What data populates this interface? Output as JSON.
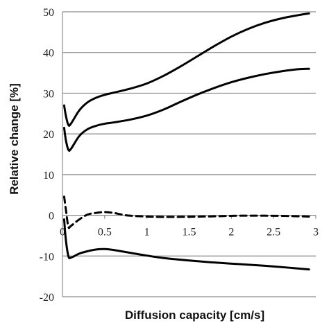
{
  "chart_data": {
    "type": "line",
    "xlabel": "Diffusion capacity [cm/s]",
    "ylabel": "Relative change [%]",
    "xlim": [
      0,
      3
    ],
    "ylim": [
      -20,
      50
    ],
    "x_ticks": [
      "0",
      "0.5",
      "1",
      "1.5",
      "2",
      "2.5",
      "3"
    ],
    "y_ticks": [
      "-20",
      "-10",
      "0",
      "10",
      "20",
      "30",
      "40",
      "50"
    ],
    "grid": "horizontal",
    "legend": "none",
    "line_color": "#000000",
    "series": [
      {
        "style": "solid",
        "points": [
          [
            0.02,
            27
          ],
          [
            0.04,
            24.5
          ],
          [
            0.07,
            22.2
          ],
          [
            0.1,
            22.5
          ],
          [
            0.2,
            25.8
          ],
          [
            0.3,
            27.8
          ],
          [
            0.4,
            28.9
          ],
          [
            0.5,
            29.6
          ],
          [
            0.6,
            30.1
          ],
          [
            0.8,
            31.1
          ],
          [
            1.0,
            32.4
          ],
          [
            1.2,
            34.3
          ],
          [
            1.4,
            36.6
          ],
          [
            1.6,
            39.1
          ],
          [
            1.8,
            41.6
          ],
          [
            2.0,
            43.9
          ],
          [
            2.2,
            45.8
          ],
          [
            2.4,
            47.3
          ],
          [
            2.6,
            48.4
          ],
          [
            2.8,
            49.2
          ],
          [
            2.92,
            49.6
          ]
        ]
      },
      {
        "style": "solid",
        "points": [
          [
            0.02,
            21.5
          ],
          [
            0.04,
            18.5
          ],
          [
            0.07,
            16.1
          ],
          [
            0.1,
            16.3
          ],
          [
            0.2,
            19.5
          ],
          [
            0.3,
            21.2
          ],
          [
            0.4,
            22.0
          ],
          [
            0.5,
            22.5
          ],
          [
            0.6,
            22.8
          ],
          [
            0.8,
            23.5
          ],
          [
            1.0,
            24.5
          ],
          [
            1.2,
            26.0
          ],
          [
            1.4,
            27.9
          ],
          [
            1.6,
            29.7
          ],
          [
            1.8,
            31.3
          ],
          [
            2.0,
            32.7
          ],
          [
            2.2,
            33.8
          ],
          [
            2.4,
            34.7
          ],
          [
            2.6,
            35.4
          ],
          [
            2.8,
            35.9
          ],
          [
            2.92,
            36.0
          ]
        ]
      },
      {
        "style": "dashed",
        "points": [
          [
            0.02,
            4.6
          ],
          [
            0.04,
            1.5
          ],
          [
            0.07,
            -2.8
          ],
          [
            0.1,
            -2.6
          ],
          [
            0.2,
            -1.0
          ],
          [
            0.3,
            0.2
          ],
          [
            0.4,
            0.6
          ],
          [
            0.5,
            0.8
          ],
          [
            0.6,
            0.6
          ],
          [
            0.7,
            0.2
          ],
          [
            0.8,
            -0.1
          ],
          [
            1.0,
            -0.3
          ],
          [
            1.2,
            -0.4
          ],
          [
            1.5,
            -0.35
          ],
          [
            1.8,
            -0.25
          ],
          [
            2.1,
            -0.1
          ],
          [
            2.4,
            -0.1
          ],
          [
            2.7,
            -0.2
          ],
          [
            2.92,
            -0.3
          ]
        ]
      },
      {
        "style": "solid",
        "points": [
          [
            0.02,
            -1.0
          ],
          [
            0.04,
            -6.0
          ],
          [
            0.07,
            -10.0
          ],
          [
            0.1,
            -10.4
          ],
          [
            0.2,
            -9.4
          ],
          [
            0.3,
            -8.8
          ],
          [
            0.4,
            -8.4
          ],
          [
            0.5,
            -8.3
          ],
          [
            0.6,
            -8.5
          ],
          [
            0.8,
            -9.2
          ],
          [
            1.0,
            -9.9
          ],
          [
            1.2,
            -10.5
          ],
          [
            1.5,
            -11.1
          ],
          [
            1.8,
            -11.6
          ],
          [
            2.1,
            -12.0
          ],
          [
            2.4,
            -12.4
          ],
          [
            2.7,
            -12.9
          ],
          [
            2.92,
            -13.3
          ]
        ]
      }
    ]
  }
}
